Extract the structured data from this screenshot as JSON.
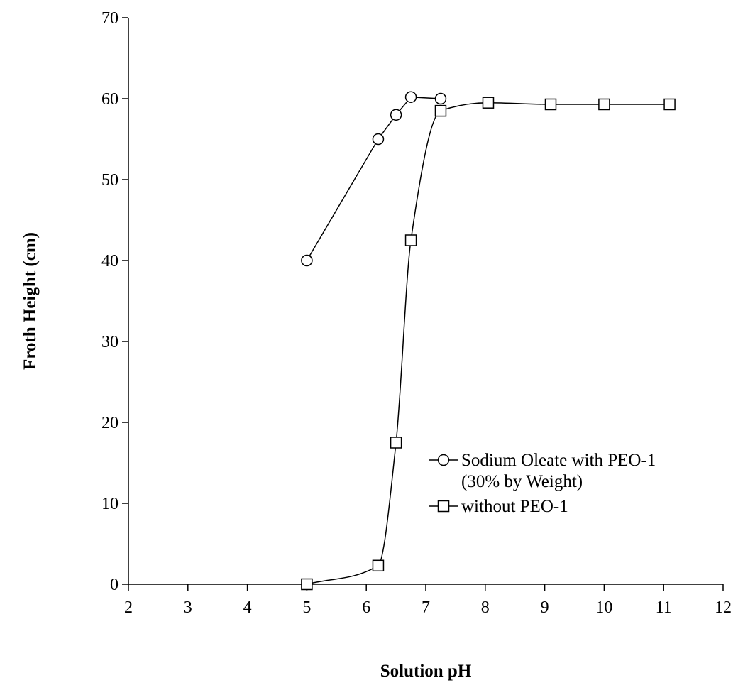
{
  "chart_data": {
    "type": "line",
    "xlabel": "Solution pH",
    "ylabel": "Froth Height (cm)",
    "xlim": [
      2,
      12
    ],
    "ylim": [
      0,
      70
    ],
    "x_ticks": [
      2,
      3,
      4,
      5,
      6,
      7,
      8,
      9,
      10,
      11,
      12
    ],
    "y_ticks": [
      0,
      10,
      20,
      30,
      40,
      50,
      60,
      70
    ],
    "grid": false,
    "legend_position": "center-right",
    "series": [
      {
        "name": "Sodium Oleate with PEO-1",
        "name_line2": "(30% by Weight)",
        "marker": "circle",
        "smooth": false,
        "points": [
          {
            "x": 5.0,
            "y": 40.0
          },
          {
            "x": 6.2,
            "y": 55.0
          },
          {
            "x": 6.5,
            "y": 58.0
          },
          {
            "x": 6.75,
            "y": 60.2
          },
          {
            "x": 7.25,
            "y": 60.0
          }
        ]
      },
      {
        "name": "without PEO-1",
        "marker": "square",
        "smooth": true,
        "points": [
          {
            "x": 5.0,
            "y": 0.0
          },
          {
            "x": 6.2,
            "y": 2.3
          },
          {
            "x": 6.5,
            "y": 17.5
          },
          {
            "x": 6.75,
            "y": 42.5
          },
          {
            "x": 7.25,
            "y": 58.5
          },
          {
            "x": 8.05,
            "y": 59.5
          },
          {
            "x": 9.1,
            "y": 59.3
          },
          {
            "x": 10.0,
            "y": 59.3
          },
          {
            "x": 11.1,
            "y": 59.3
          }
        ]
      }
    ]
  }
}
